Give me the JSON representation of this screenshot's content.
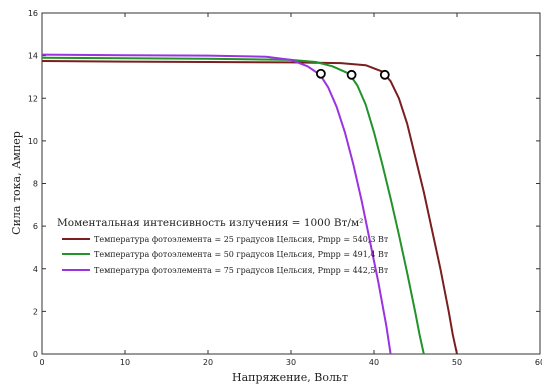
{
  "chart_data": {
    "type": "line",
    "xlabel": "Напряжение, Вольт",
    "ylabel": "Сила тока, Ампер",
    "xlim": [
      0,
      60
    ],
    "ylim": [
      0,
      16
    ],
    "xticks": [
      0,
      10,
      20,
      30,
      40,
      50,
      60
    ],
    "yticks": [
      0,
      2,
      4,
      6,
      8,
      10,
      12,
      14,
      16
    ],
    "grid": false,
    "legend": {
      "title": "Моментальная интенсивность излучения = 1000 Вт/м²",
      "placement": "lower-left"
    },
    "series": [
      {
        "name": "Температура фотоэлемента = 25 градусов Цельсия, Pmpp = 540,3 Вт",
        "color": "#7a1e1e",
        "x": [
          0,
          10,
          20,
          30,
          36,
          39,
          41,
          42,
          43,
          44,
          45,
          46,
          47,
          48,
          49,
          49.5,
          50
        ],
        "y": [
          13.75,
          13.72,
          13.7,
          13.68,
          13.65,
          13.55,
          13.25,
          12.8,
          12.0,
          10.8,
          9.2,
          7.6,
          5.8,
          4.0,
          2.0,
          0.9,
          0
        ],
        "mpp": [
          41.3,
          13.1
        ]
      },
      {
        "name": "Температура фотоэлемента = 50 градусов Цельсия, Pmpp = 491,4 Вт",
        "color": "#22922a",
        "x": [
          0,
          10,
          20,
          30,
          33,
          35,
          37,
          38,
          39,
          40,
          41,
          42,
          43,
          44,
          45,
          45.5,
          46
        ],
        "y": [
          13.9,
          13.88,
          13.85,
          13.8,
          13.7,
          13.5,
          13.15,
          12.6,
          11.7,
          10.4,
          8.9,
          7.3,
          5.6,
          3.8,
          1.9,
          0.9,
          0
        ],
        "mpp": [
          37.3,
          13.1
        ]
      },
      {
        "name": "Температура фотоэлемента = 75 градусов Цельсия, Pmpp = 442,5 Вт",
        "color": "#9a33e0",
        "x": [
          0,
          10,
          20,
          27,
          30,
          32,
          33.5,
          34.5,
          35.5,
          36.5,
          37.5,
          38.5,
          39.5,
          40.5,
          41.5,
          42
        ],
        "y": [
          14.05,
          14.02,
          14.0,
          13.95,
          13.8,
          13.5,
          13.1,
          12.5,
          11.6,
          10.4,
          8.9,
          7.2,
          5.3,
          3.4,
          1.3,
          0
        ],
        "mpp": [
          33.6,
          13.15
        ]
      }
    ]
  }
}
